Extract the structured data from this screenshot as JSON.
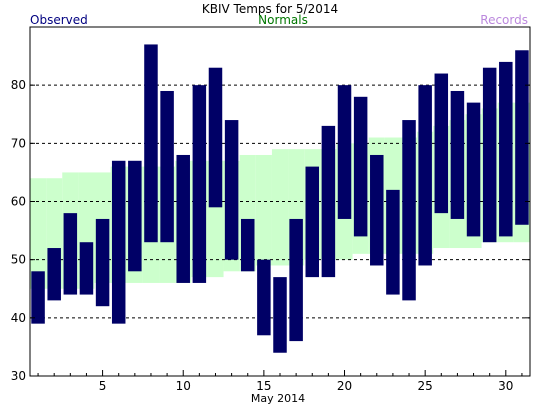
{
  "chart_data": {
    "type": "bar",
    "title": "KBIV Temps for 5/2014",
    "legend": {
      "observed_label": "Observed",
      "normals_label": "Normals",
      "records_label": "Records"
    },
    "xlabel": "May 2014",
    "ylabel": "",
    "xlim": [
      0.5,
      31.5
    ],
    "ylim": [
      30,
      90
    ],
    "yticks": [
      30,
      40,
      50,
      60,
      70,
      80
    ],
    "xticks": [
      5,
      10,
      15,
      20,
      25,
      30
    ],
    "grid_dashed_at": [
      40,
      50,
      60,
      70,
      80
    ],
    "colors": {
      "observed": "#000066",
      "normals": "#ccffcc",
      "observed_text": "#000080",
      "normals_text": "#007700",
      "records_text": "#bb88dd"
    },
    "observed": {
      "days": [
        1,
        2,
        3,
        4,
        5,
        6,
        7,
        8,
        9,
        10,
        11,
        12,
        13,
        14,
        15,
        16,
        17,
        18,
        19,
        20,
        21,
        22,
        23,
        24,
        25,
        26,
        27,
        28,
        29,
        30,
        31
      ],
      "highs": [
        48,
        52,
        58,
        53,
        57,
        67,
        67,
        87,
        79,
        68,
        80,
        83,
        74,
        57,
        50,
        47,
        57,
        66,
        73,
        80,
        78,
        68,
        62,
        74,
        80,
        82,
        79,
        77,
        83,
        84,
        86
      ],
      "lows": [
        39,
        43,
        44,
        44,
        42,
        39,
        48,
        53,
        53,
        46,
        46,
        59,
        50,
        48,
        37,
        34,
        36,
        47,
        47,
        57,
        54,
        49,
        44,
        43,
        49,
        58,
        57,
        54,
        53,
        54,
        56
      ]
    },
    "normals": {
      "days": [
        1,
        2,
        3,
        4,
        5,
        6,
        7,
        8,
        9,
        10,
        11,
        12,
        13,
        14,
        15,
        16,
        17,
        18,
        19,
        20,
        21,
        22,
        23,
        24,
        25,
        26,
        27,
        28,
        29,
        30,
        31
      ],
      "highs": [
        64,
        64,
        65,
        65,
        65,
        66,
        66,
        66,
        66,
        67,
        67,
        67,
        67,
        68,
        68,
        69,
        69,
        69,
        69,
        70,
        70,
        71,
        71,
        71,
        72,
        73,
        74,
        75,
        76,
        77,
        77
      ],
      "lows": [
        45,
        45,
        45,
        45,
        46,
        46,
        46,
        46,
        46,
        46,
        47,
        47,
        48,
        48,
        49,
        49,
        49,
        50,
        50,
        50,
        51,
        51,
        51,
        51,
        51,
        52,
        52,
        52,
        53,
        53,
        53
      ]
    }
  }
}
